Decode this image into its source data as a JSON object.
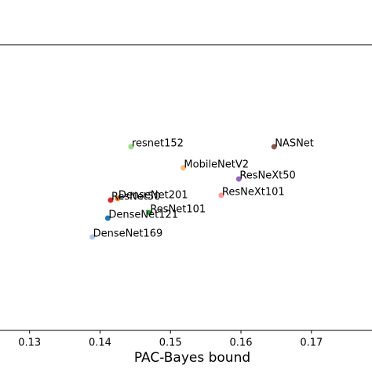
{
  "chart_data": {
    "type": "scatter",
    "xlabel": "PAC-Bayes bound",
    "xlim": [
      0.1258,
      0.1786
    ],
    "ylim": [
      0,
      1
    ],
    "xticks": [
      0.13,
      0.14,
      0.15,
      0.16,
      0.17
    ],
    "series": [
      {
        "name": "resnet152",
        "color": "#98df8a",
        "x": [
          0.1444
        ],
        "values": [
          0.643
        ]
      },
      {
        "name": "NASNet",
        "color": "#8c564b",
        "x": [
          0.1647
        ],
        "values": [
          0.643
        ]
      },
      {
        "name": "MobileNetV2",
        "color": "#ffbb78",
        "x": [
          0.1518
        ],
        "values": [
          0.569
        ]
      },
      {
        "name": "ResNeXt50",
        "color": "#9467bd",
        "x": [
          0.1597
        ],
        "values": [
          0.53
        ]
      },
      {
        "name": "ResNeXt101",
        "color": "#ff9896",
        "x": [
          0.1572
        ],
        "values": [
          0.473
        ]
      },
      {
        "name": "DenseNet201",
        "color": "#ff7f0e",
        "x": [
          0.1425
        ],
        "values": [
          0.462
        ]
      },
      {
        "name": "ResNet50",
        "color": "#d62728",
        "x": [
          0.1415
        ],
        "values": [
          0.456
        ]
      },
      {
        "name": "ResNet101",
        "color": "#2ca02c",
        "x": [
          0.147
        ],
        "values": [
          0.412
        ]
      },
      {
        "name": "DenseNet121",
        "color": "#1f77b4",
        "x": [
          0.1411
        ],
        "values": [
          0.393
        ]
      },
      {
        "name": "DenseNet169",
        "color": "#aec7e8",
        "x": [
          0.1389
        ],
        "values": [
          0.327
        ]
      }
    ]
  }
}
